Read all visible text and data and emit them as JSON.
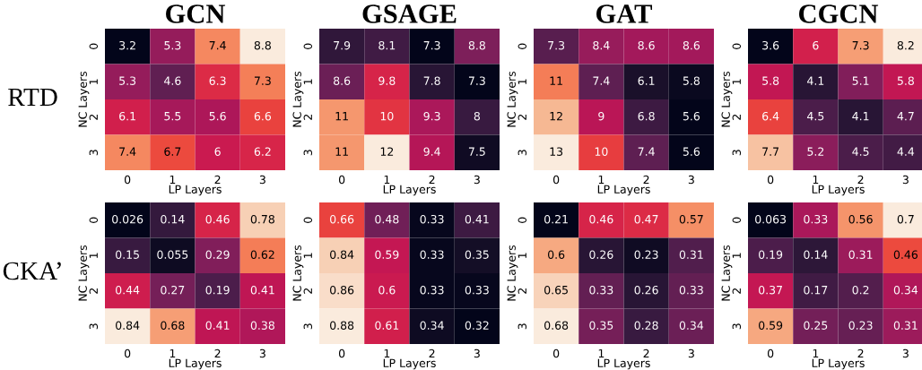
{
  "chart_data": [
    {
      "type": "heatmap",
      "data_labels": true,
      "title": "GCN",
      "xlabel": "LP Layers",
      "ylabel": "NC Layers",
      "annotations": [
        "RTD"
      ],
      "categories": [
        "0",
        "1",
        "2",
        "3"
      ],
      "y_categories": [
        "0",
        "1",
        "2",
        "3"
      ],
      "cells": [
        [
          3.2,
          5.3,
          7.4,
          8.8
        ],
        [
          5.3,
          4.6,
          6.3,
          7.3
        ],
        [
          6.1,
          5.5,
          5.6,
          6.6
        ],
        [
          7.4,
          6.7,
          6,
          6.2
        ]
      ]
    },
    {
      "type": "heatmap",
      "data_labels": true,
      "title": "GSAGE",
      "xlabel": "LP Layers",
      "ylabel": "NC Layers",
      "categories": [
        "0",
        "1",
        "2",
        "3"
      ],
      "y_categories": [
        "0",
        "1",
        "2",
        "3"
      ],
      "cells": [
        [
          7.9,
          8.1,
          7.3,
          8.8
        ],
        [
          8.6,
          9.8,
          7.8,
          7.3
        ],
        [
          11,
          10,
          9.3,
          8
        ],
        [
          11,
          12,
          9.4,
          7.5
        ]
      ]
    },
    {
      "type": "heatmap",
      "data_labels": true,
      "title": "GAT",
      "xlabel": "LP Layers",
      "ylabel": "NC Layers",
      "categories": [
        "0",
        "1",
        "2",
        "3"
      ],
      "y_categories": [
        "0",
        "1",
        "2",
        "3"
      ],
      "cells": [
        [
          7.3,
          8.4,
          8.6,
          8.6
        ],
        [
          11,
          7.4,
          6.1,
          5.8
        ],
        [
          12,
          9,
          6.8,
          5.6
        ],
        [
          13,
          10,
          7.4,
          5.6
        ]
      ]
    },
    {
      "type": "heatmap",
      "data_labels": true,
      "title": "CGCN",
      "xlabel": "LP Layers",
      "ylabel": "NC Layers",
      "categories": [
        "0",
        "1",
        "2",
        "3"
      ],
      "y_categories": [
        "0",
        "1",
        "2",
        "3"
      ],
      "cells": [
        [
          3.6,
          6,
          7.3,
          8.2
        ],
        [
          5.8,
          4.1,
          5.1,
          5.8
        ],
        [
          6.4,
          4.5,
          4.1,
          4.7
        ],
        [
          7.7,
          5.2,
          4.5,
          4.4
        ]
      ]
    },
    {
      "type": "heatmap",
      "data_labels": true,
      "xlabel": "LP Layers",
      "ylabel": "NC Layers",
      "annotations": [
        "CKA’"
      ],
      "categories": [
        "0",
        "1",
        "2",
        "3"
      ],
      "y_categories": [
        "0",
        "1",
        "2",
        "3"
      ],
      "cells": [
        [
          0.026,
          0.14,
          0.46,
          0.78
        ],
        [
          0.15,
          0.055,
          0.29,
          0.62
        ],
        [
          0.44,
          0.27,
          0.19,
          0.41
        ],
        [
          0.84,
          0.68,
          0.41,
          0.38
        ]
      ]
    },
    {
      "type": "heatmap",
      "data_labels": true,
      "xlabel": "LP Layers",
      "ylabel": "NC Layers",
      "categories": [
        "0",
        "1",
        "2",
        "3"
      ],
      "y_categories": [
        "0",
        "1",
        "2",
        "3"
      ],
      "cells": [
        [
          0.66,
          0.48,
          0.33,
          0.41
        ],
        [
          0.84,
          0.59,
          0.33,
          0.35
        ],
        [
          0.86,
          0.6,
          0.33,
          0.33
        ],
        [
          0.88,
          0.61,
          0.34,
          0.32
        ]
      ]
    },
    {
      "type": "heatmap",
      "data_labels": true,
      "xlabel": "LP Layers",
      "ylabel": "NC Layers",
      "categories": [
        "0",
        "1",
        "2",
        "3"
      ],
      "y_categories": [
        "0",
        "1",
        "2",
        "3"
      ],
      "cells": [
        [
          0.21,
          0.46,
          0.47,
          0.57
        ],
        [
          0.6,
          0.26,
          0.23,
          0.31
        ],
        [
          0.65,
          0.33,
          0.26,
          0.33
        ],
        [
          0.68,
          0.35,
          0.28,
          0.34
        ]
      ]
    },
    {
      "type": "heatmap",
      "data_labels": true,
      "xlabel": "LP Layers",
      "ylabel": "NC Layers",
      "categories": [
        "0",
        "1",
        "2",
        "3"
      ],
      "y_categories": [
        "0",
        "1",
        "2",
        "3"
      ],
      "cells": [
        [
          0.063,
          0.33,
          0.56,
          0.7
        ],
        [
          0.19,
          0.14,
          0.31,
          0.46
        ],
        [
          0.37,
          0.17,
          0.2,
          0.34
        ],
        [
          0.59,
          0.25,
          0.23,
          0.31
        ]
      ]
    }
  ]
}
